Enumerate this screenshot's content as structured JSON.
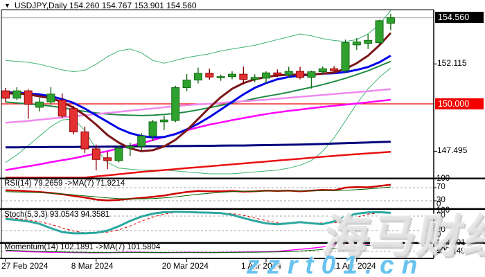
{
  "window": {
    "title_dropdown": "▼",
    "title": "USDJPY,Daily  154.260 154.767 153.901 154.560"
  },
  "watermarks": {
    "brand": "海马财经",
    "site": "zzrt01.cn"
  },
  "colors": {
    "background": "#FFFFFF",
    "border": "#000000",
    "bull_fill": "#2EA12E",
    "bull_stroke": "#156B15",
    "bear_fill": "#E33030",
    "bear_stroke": "#8F0000",
    "grid_dashed": "#A6A6A6",
    "current_price_line": "#BDBDBD",
    "hline_red": "#F40000",
    "badge_black_bg": "#000000",
    "badge_red_bg": "#F40000"
  },
  "chart_data": {
    "type": "candlestick",
    "symbol": "USDJPY",
    "timeframe": "Daily",
    "ohlc_display": {
      "open": "154.260",
      "high": "154.767",
      "low": "153.901",
      "close": "154.560"
    },
    "x_axis": {
      "tick_labels": [
        "27 Feb 2024",
        "8 Mar 2024",
        "20 Mar 2024",
        "1 Apr 2024",
        "11 Apr 2024"
      ],
      "tick_indices": [
        0,
        8,
        16,
        23,
        31
      ]
    },
    "y_axis": {
      "tick_labels": [
        "152.115",
        "147.495"
      ],
      "current_price_label": "154.560",
      "hline_label": "150.000",
      "current_price": 154.56,
      "hline": 150.0
    },
    "candles": [
      [
        150.69,
        150.85,
        150.08,
        150.3
      ],
      [
        150.3,
        150.88,
        150.2,
        150.69
      ],
      [
        150.69,
        150.77,
        149.21,
        149.98
      ],
      [
        149.82,
        150.32,
        149.6,
        150.1
      ],
      [
        150.1,
        150.89,
        149.95,
        150.52
      ],
      [
        150.2,
        150.55,
        149.25,
        149.35
      ],
      [
        149.75,
        149.9,
        148.38,
        148.52
      ],
      [
        148.52,
        148.8,
        147.4,
        147.62
      ],
      [
        147.62,
        147.85,
        146.48,
        147.06
      ],
      [
        147.15,
        147.48,
        146.55,
        147.0
      ],
      [
        147.0,
        147.8,
        146.9,
        147.66
      ],
      [
        147.66,
        147.95,
        147.25,
        147.76
      ],
      [
        147.76,
        148.45,
        147.55,
        148.3
      ],
      [
        148.3,
        149.15,
        148.02,
        149.05
      ],
      [
        149.05,
        149.38,
        148.62,
        149.15
      ],
      [
        149.12,
        150.96,
        149.03,
        150.86
      ],
      [
        150.86,
        151.58,
        150.68,
        151.26
      ],
      [
        151.26,
        151.92,
        151.08,
        151.62
      ],
      [
        151.62,
        151.86,
        151.28,
        151.42
      ],
      [
        151.38,
        151.55,
        151.22,
        151.44
      ],
      [
        151.44,
        151.72,
        151.3,
        151.57
      ],
      [
        151.57,
        151.97,
        151.02,
        151.3
      ],
      [
        151.3,
        151.56,
        151.14,
        151.4
      ],
      [
        151.36,
        151.72,
        151.08,
        151.64
      ],
      [
        151.64,
        151.82,
        151.42,
        151.54
      ],
      [
        151.54,
        151.96,
        151.38,
        151.72
      ],
      [
        151.72,
        151.96,
        151.3,
        151.4
      ],
      [
        151.4,
        151.76,
        150.81,
        151.7
      ],
      [
        151.7,
        151.98,
        151.58,
        151.86
      ],
      [
        151.86,
        152.0,
        151.66,
        151.76
      ],
      [
        151.76,
        153.4,
        151.65,
        153.24
      ],
      [
        153.12,
        153.48,
        152.86,
        153.28
      ],
      [
        153.2,
        153.69,
        152.9,
        153.36
      ],
      [
        153.24,
        154.45,
        153.15,
        154.4
      ],
      [
        154.26,
        154.767,
        153.901,
        154.56
      ]
    ],
    "overlays": [
      {
        "name": "bollinger-upper",
        "color": "#3CB371",
        "width": 1,
        "values": [
          152.3,
          152.25,
          152.2,
          152.1,
          151.95,
          151.8,
          151.7,
          151.78,
          152.1,
          152.5,
          152.8,
          152.9,
          152.7,
          152.3,
          152.15,
          152.3,
          152.45,
          152.55,
          152.65,
          152.8,
          152.9,
          153.0,
          153.1,
          153.25,
          153.4,
          153.55,
          153.7,
          153.6,
          153.45,
          153.35,
          153.3,
          153.4,
          153.7,
          154.2,
          154.95
        ]
      },
      {
        "name": "bollinger-lower",
        "color": "#3CB371",
        "width": 1,
        "values": [
          146.9,
          147.3,
          147.8,
          148.3,
          148.8,
          149.15,
          149.2,
          148.6,
          147.6,
          146.9,
          146.6,
          146.55,
          146.5,
          146.5,
          146.5,
          146.45,
          146.4,
          146.35,
          146.3,
          146.3,
          146.3,
          146.35,
          146.4,
          146.45,
          146.5,
          146.6,
          146.75,
          147.0,
          147.5,
          148.2,
          149.1,
          150.0,
          150.8,
          151.4,
          151.9
        ]
      },
      {
        "name": "ma-dark-green",
        "color": "#1E8B45",
        "width": 2,
        "values": [
          150.1,
          150.05,
          150.0,
          149.95,
          149.88,
          149.8,
          149.7,
          149.6,
          149.52,
          149.46,
          149.42,
          149.4,
          149.38,
          149.4,
          149.44,
          149.5,
          149.58,
          149.68,
          149.8,
          149.92,
          150.05,
          150.15,
          150.28,
          150.4,
          150.5,
          150.62,
          150.75,
          150.88,
          151.02,
          151.18,
          151.35,
          151.55,
          151.75,
          152.0,
          152.25
        ]
      },
      {
        "name": "ma-magenta",
        "color": "#FF00FF",
        "width": 2.5,
        "values": [
          146.5,
          146.6,
          146.7,
          146.8,
          146.92,
          147.02,
          147.12,
          147.25,
          147.38,
          147.5,
          147.65,
          147.78,
          147.92,
          148.08,
          148.25,
          148.42,
          148.6,
          148.76,
          148.9,
          149.02,
          149.14,
          149.25,
          149.36,
          149.46,
          149.55,
          149.63,
          149.7,
          149.77,
          149.84,
          149.9,
          149.96,
          150.02,
          150.08,
          150.15,
          150.22
        ]
      },
      {
        "name": "ma-plum",
        "color": "#EE8AEE",
        "width": 2.5,
        "values": [
          149.0,
          149.05,
          149.1,
          149.16,
          149.22,
          149.28,
          149.34,
          149.4,
          149.46,
          149.52,
          149.58,
          149.64,
          149.7,
          149.76,
          149.82,
          149.88,
          149.93,
          149.97,
          150.0,
          150.05,
          150.1,
          150.14,
          150.18,
          150.22,
          150.27,
          150.32,
          150.37,
          150.42,
          150.47,
          150.52,
          150.57,
          150.62,
          150.67,
          150.73,
          150.78
        ]
      },
      {
        "name": "ma-navy",
        "color": "#00007D",
        "width": 3,
        "values": [
          147.7,
          147.7,
          147.71,
          147.71,
          147.72,
          147.72,
          147.72,
          147.73,
          147.73,
          147.74,
          147.74,
          147.75,
          147.75,
          147.76,
          147.76,
          147.77,
          147.77,
          147.78,
          147.78,
          147.79,
          147.8,
          147.8,
          147.81,
          147.82,
          147.83,
          147.84,
          147.85,
          147.86,
          147.88,
          147.9,
          147.92,
          147.94,
          147.96,
          147.98,
          148.0
        ]
      },
      {
        "name": "ma-red-slow",
        "color": "#E81010",
        "width": 2.5,
        "values": [
          145.6,
          145.68,
          145.76,
          145.83,
          145.9,
          145.97,
          146.04,
          146.1,
          146.16,
          146.22,
          146.28,
          146.34,
          146.4,
          146.45,
          146.5,
          146.55,
          146.6,
          146.65,
          146.7,
          146.75,
          146.8,
          146.85,
          146.9,
          146.95,
          147.0,
          147.05,
          147.1,
          147.15,
          147.2,
          147.25,
          147.3,
          147.34,
          147.38,
          147.42,
          147.46
        ]
      },
      {
        "name": "ma-blue",
        "color": "#0000E8",
        "width": 3,
        "values": [
          150.6,
          150.6,
          150.55,
          150.5,
          150.4,
          150.25,
          150.05,
          149.75,
          149.4,
          149.05,
          148.7,
          148.45,
          148.3,
          148.22,
          148.25,
          148.4,
          148.65,
          148.95,
          149.3,
          149.7,
          150.1,
          150.5,
          150.85,
          151.1,
          151.3,
          151.42,
          151.5,
          151.55,
          151.6,
          151.62,
          151.68,
          151.8,
          151.95,
          152.2,
          152.55
        ]
      },
      {
        "name": "ma-maroon",
        "color": "#7B1518",
        "width": 3,
        "values": [
          150.55,
          150.55,
          150.5,
          150.4,
          150.3,
          150.1,
          149.8,
          149.4,
          148.9,
          148.35,
          147.95,
          147.65,
          147.5,
          147.55,
          147.75,
          148.1,
          148.6,
          149.2,
          149.8,
          150.35,
          150.8,
          151.1,
          151.3,
          151.42,
          151.5,
          151.55,
          151.55,
          151.55,
          151.6,
          151.66,
          151.85,
          152.15,
          152.55,
          153.1,
          153.75
        ]
      }
    ],
    "panels": [
      {
        "id": "rsi",
        "label": "RSI(14) 79.2659  ->MA(7) 71.9214",
        "levels": [
          70,
          30
        ],
        "axis_labels": [
          "100",
          "70",
          "30",
          "0"
        ],
        "series": [
          {
            "name": "rsi",
            "color": "#CC0000",
            "width": 2.5,
            "values": [
              62,
              61,
              59,
              57,
              54,
              50,
              45,
              40,
              34,
              31,
              33,
              36,
              39,
              42,
              46,
              52,
              57,
              60,
              59,
              59,
              60,
              58,
              59,
              61,
              60,
              61,
              59,
              61,
              63,
              62,
              70,
              72,
              71,
              75,
              79
            ]
          },
          {
            "name": "rsi-ma",
            "color": "#006600",
            "width": 1,
            "values": [
              58,
              57,
              56,
              55,
              53,
              51,
              48,
              45,
              42,
              39,
              37,
              36,
              36,
              37,
              39,
              42,
              46,
              50,
              53,
              56,
              58,
              59,
              59,
              60,
              60,
              60,
              60,
              60,
              61,
              61,
              62,
              64,
              66,
              69,
              72
            ]
          }
        ]
      },
      {
        "id": "stoch",
        "label": "Stoch(5,3,3) 93.0543 94.3581",
        "levels": [
          80,
          20
        ],
        "axis_labels": [
          "100",
          "80",
          "20",
          "0"
        ],
        "series": [
          {
            "name": "stoch-d",
            "color": "#DD0000",
            "width": 1,
            "dash": "4,3",
            "values": [
              75,
              70,
              64,
              57,
              46,
              31,
              18,
              11,
              10,
              14,
              23,
              39,
              59,
              76,
              88,
              95,
              97,
              96,
              94,
              93,
              90,
              83,
              72,
              61,
              52,
              49,
              52,
              52,
              51,
              52,
              61,
              75,
              88,
              93,
              94
            ]
          },
          {
            "name": "stoch-k",
            "color": "#2AA8A0",
            "width": 3,
            "values": [
              68,
              64,
              58,
              48,
              30,
              14,
              9,
              9,
              11,
              20,
              38,
              60,
              78,
              90,
              96,
              98,
              97,
              95,
              94,
              92,
              85,
              72,
              60,
              50,
              46,
              50,
              55,
              50,
              47,
              58,
              78,
              90,
              95,
              96,
              93
            ]
          }
        ]
      },
      {
        "id": "momentum",
        "label": "Momentum(14) 102.1891  ->MA(7) 101.5804",
        "levels": [
          100
        ],
        "axis_labels": [
          "103.201",
          "100",
          "99.7149"
        ],
        "series": [
          {
            "name": "momentum",
            "color": "#FF00FF",
            "width": 1.5,
            "values": [
              100.2,
              100.05,
              99.9,
              99.82,
              99.76,
              99.72,
              99.68,
              99.64,
              99.6,
              99.62,
              99.7,
              99.78,
              99.72,
              99.68,
              99.65,
              99.68,
              99.72,
              99.7,
              99.68,
              99.7,
              99.75,
              99.8,
              99.85,
              99.9,
              100.0,
              100.3,
              100.6,
              100.9,
              101.3,
              101.9,
              102.5,
              102.6,
              102.35,
              102.1,
              102.19
            ]
          },
          {
            "name": "momentum-ma",
            "color": "#006600",
            "width": 1,
            "values": [
              100.35,
              100.22,
              100.1,
              100.0,
              99.92,
              99.85,
              99.78,
              99.73,
              99.7,
              99.68,
              99.67,
              99.68,
              99.7,
              99.71,
              99.7,
              99.69,
              99.69,
              99.69,
              99.7,
              99.7,
              99.71,
              99.73,
              99.76,
              99.8,
              99.86,
              99.95,
              100.1,
              100.3,
              100.55,
              100.85,
              101.2,
              101.5,
              101.7,
              101.8,
              101.58
            ]
          }
        ]
      }
    ]
  }
}
